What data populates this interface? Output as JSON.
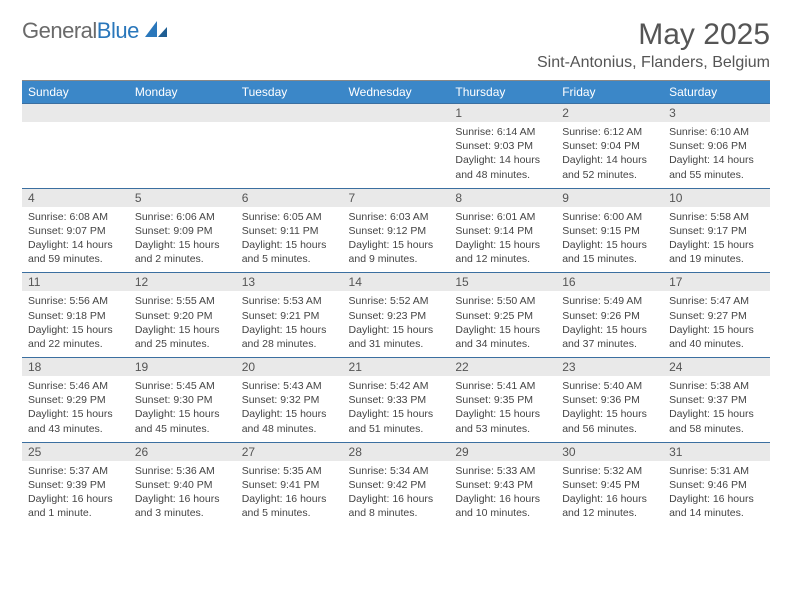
{
  "logo": {
    "word1": "General",
    "word2": "Blue"
  },
  "title": "May 2025",
  "location": "Sint-Antonius, Flanders, Belgium",
  "colors": {
    "header_bg": "#3b87c8",
    "header_text": "#ffffff",
    "daynum_bg": "#e9e9e9",
    "row_divider": "#3b6fa0",
    "body_text": "#444444",
    "logo_gray": "#6a6a6a",
    "logo_blue": "#2a77bb"
  },
  "dow": [
    "Sunday",
    "Monday",
    "Tuesday",
    "Wednesday",
    "Thursday",
    "Friday",
    "Saturday"
  ],
  "weeks": [
    {
      "nums": [
        "",
        "",
        "",
        "",
        "1",
        "2",
        "3"
      ],
      "cells": [
        {},
        {},
        {},
        {},
        {
          "sunrise": "6:14 AM",
          "sunset": "9:03 PM",
          "daylight": "14 hours and 48 minutes."
        },
        {
          "sunrise": "6:12 AM",
          "sunset": "9:04 PM",
          "daylight": "14 hours and 52 minutes."
        },
        {
          "sunrise": "6:10 AM",
          "sunset": "9:06 PM",
          "daylight": "14 hours and 55 minutes."
        }
      ]
    },
    {
      "nums": [
        "4",
        "5",
        "6",
        "7",
        "8",
        "9",
        "10"
      ],
      "cells": [
        {
          "sunrise": "6:08 AM",
          "sunset": "9:07 PM",
          "daylight": "14 hours and 59 minutes."
        },
        {
          "sunrise": "6:06 AM",
          "sunset": "9:09 PM",
          "daylight": "15 hours and 2 minutes."
        },
        {
          "sunrise": "6:05 AM",
          "sunset": "9:11 PM",
          "daylight": "15 hours and 5 minutes."
        },
        {
          "sunrise": "6:03 AM",
          "sunset": "9:12 PM",
          "daylight": "15 hours and 9 minutes."
        },
        {
          "sunrise": "6:01 AM",
          "sunset": "9:14 PM",
          "daylight": "15 hours and 12 minutes."
        },
        {
          "sunrise": "6:00 AM",
          "sunset": "9:15 PM",
          "daylight": "15 hours and 15 minutes."
        },
        {
          "sunrise": "5:58 AM",
          "sunset": "9:17 PM",
          "daylight": "15 hours and 19 minutes."
        }
      ]
    },
    {
      "nums": [
        "11",
        "12",
        "13",
        "14",
        "15",
        "16",
        "17"
      ],
      "cells": [
        {
          "sunrise": "5:56 AM",
          "sunset": "9:18 PM",
          "daylight": "15 hours and 22 minutes."
        },
        {
          "sunrise": "5:55 AM",
          "sunset": "9:20 PM",
          "daylight": "15 hours and 25 minutes."
        },
        {
          "sunrise": "5:53 AM",
          "sunset": "9:21 PM",
          "daylight": "15 hours and 28 minutes."
        },
        {
          "sunrise": "5:52 AM",
          "sunset": "9:23 PM",
          "daylight": "15 hours and 31 minutes."
        },
        {
          "sunrise": "5:50 AM",
          "sunset": "9:25 PM",
          "daylight": "15 hours and 34 minutes."
        },
        {
          "sunrise": "5:49 AM",
          "sunset": "9:26 PM",
          "daylight": "15 hours and 37 minutes."
        },
        {
          "sunrise": "5:47 AM",
          "sunset": "9:27 PM",
          "daylight": "15 hours and 40 minutes."
        }
      ]
    },
    {
      "nums": [
        "18",
        "19",
        "20",
        "21",
        "22",
        "23",
        "24"
      ],
      "cells": [
        {
          "sunrise": "5:46 AM",
          "sunset": "9:29 PM",
          "daylight": "15 hours and 43 minutes."
        },
        {
          "sunrise": "5:45 AM",
          "sunset": "9:30 PM",
          "daylight": "15 hours and 45 minutes."
        },
        {
          "sunrise": "5:43 AM",
          "sunset": "9:32 PM",
          "daylight": "15 hours and 48 minutes."
        },
        {
          "sunrise": "5:42 AM",
          "sunset": "9:33 PM",
          "daylight": "15 hours and 51 minutes."
        },
        {
          "sunrise": "5:41 AM",
          "sunset": "9:35 PM",
          "daylight": "15 hours and 53 minutes."
        },
        {
          "sunrise": "5:40 AM",
          "sunset": "9:36 PM",
          "daylight": "15 hours and 56 minutes."
        },
        {
          "sunrise": "5:38 AM",
          "sunset": "9:37 PM",
          "daylight": "15 hours and 58 minutes."
        }
      ]
    },
    {
      "nums": [
        "25",
        "26",
        "27",
        "28",
        "29",
        "30",
        "31"
      ],
      "cells": [
        {
          "sunrise": "5:37 AM",
          "sunset": "9:39 PM",
          "daylight": "16 hours and 1 minute."
        },
        {
          "sunrise": "5:36 AM",
          "sunset": "9:40 PM",
          "daylight": "16 hours and 3 minutes."
        },
        {
          "sunrise": "5:35 AM",
          "sunset": "9:41 PM",
          "daylight": "16 hours and 5 minutes."
        },
        {
          "sunrise": "5:34 AM",
          "sunset": "9:42 PM",
          "daylight": "16 hours and 8 minutes."
        },
        {
          "sunrise": "5:33 AM",
          "sunset": "9:43 PM",
          "daylight": "16 hours and 10 minutes."
        },
        {
          "sunrise": "5:32 AM",
          "sunset": "9:45 PM",
          "daylight": "16 hours and 12 minutes."
        },
        {
          "sunrise": "5:31 AM",
          "sunset": "9:46 PM",
          "daylight": "16 hours and 14 minutes."
        }
      ]
    }
  ]
}
